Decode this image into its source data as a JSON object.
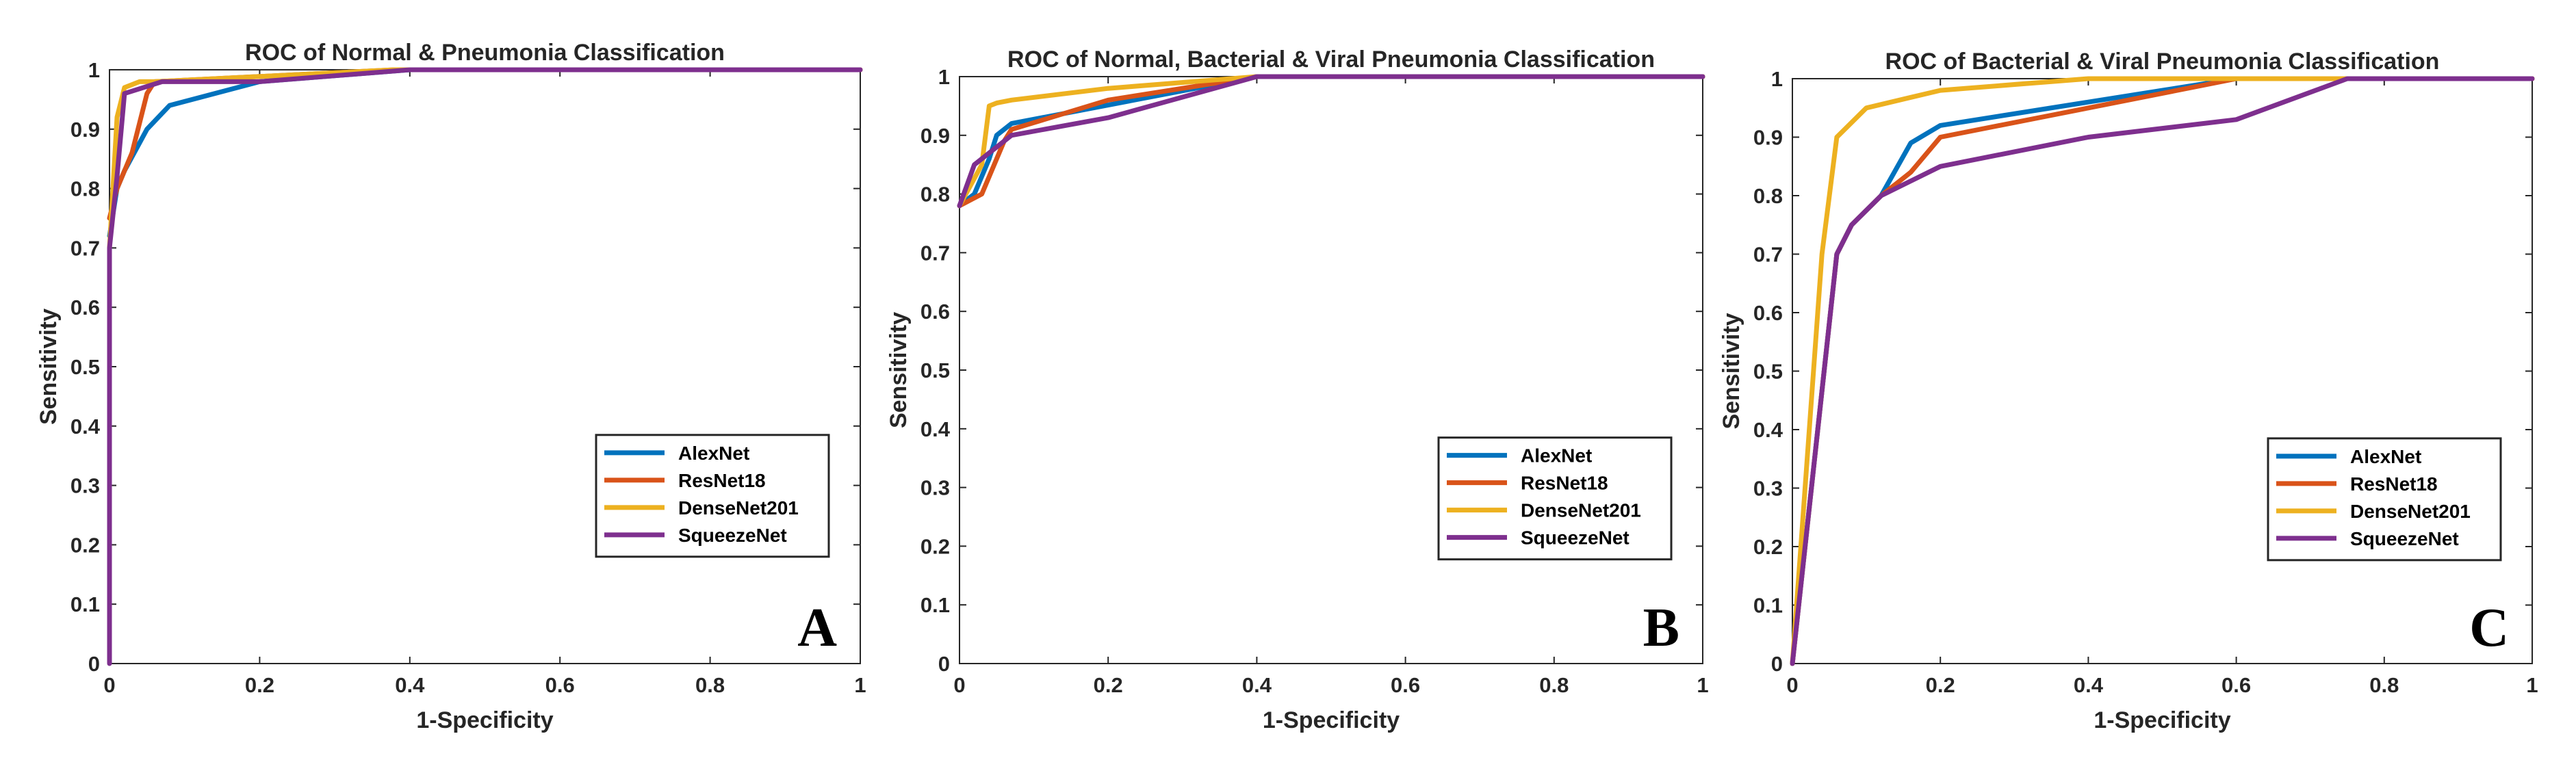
{
  "chart_data": [
    {
      "type": "line",
      "title": "ROC of Normal & Pneumonia Classification",
      "xlabel": "1-Specificity",
      "ylabel": "Sensitivity",
      "xlim": [
        0,
        1
      ],
      "ylim": [
        0,
        1
      ],
      "xticks": [
        "0",
        "0.2",
        "0.4",
        "0.6",
        "0.8",
        "1"
      ],
      "yticks": [
        "0",
        "0.1",
        "0.2",
        "0.3",
        "0.4",
        "0.5",
        "0.6",
        "0.7",
        "0.8",
        "0.9",
        "1"
      ],
      "grid": false,
      "legend_position": "bottom-right",
      "panel_label": "A",
      "series": [
        {
          "name": "AlexNet",
          "color": "#0072BD",
          "x": [
            0,
            0.01,
            0.02,
            0.05,
            0.08,
            0.2,
            0.4,
            1
          ],
          "y": [
            0.72,
            0.8,
            0.83,
            0.9,
            0.94,
            0.98,
            1,
            1
          ]
        },
        {
          "name": "ResNet18",
          "color": "#D95319",
          "x": [
            0,
            0.01,
            0.03,
            0.05,
            0.06,
            0.38,
            1
          ],
          "y": [
            0.75,
            0.8,
            0.86,
            0.96,
            0.98,
            1,
            1
          ]
        },
        {
          "name": "DenseNet201",
          "color": "#EDB120",
          "x": [
            0,
            0.01,
            0.02,
            0.04,
            0.06,
            0.38,
            1
          ],
          "y": [
            0.7,
            0.92,
            0.97,
            0.98,
            0.98,
            1,
            1
          ]
        },
        {
          "name": "SqueezeNet",
          "color": "#7E2F8E",
          "x": [
            0,
            0,
            0.01,
            0.02,
            0.07,
            0.2,
            0.4,
            1
          ],
          "y": [
            0,
            0.7,
            0.82,
            0.96,
            0.98,
            0.98,
            1,
            1
          ]
        }
      ]
    },
    {
      "type": "line",
      "title": "ROC of Normal, Bacterial & Viral Pneumonia Classification",
      "xlabel": "1-Specificity",
      "ylabel": "Sensitivity",
      "xlim": [
        0,
        1
      ],
      "ylim": [
        0,
        1
      ],
      "xticks": [
        "0",
        "0.2",
        "0.4",
        "0.6",
        "0.8",
        "1"
      ],
      "yticks": [
        "0",
        "0.1",
        "0.2",
        "0.3",
        "0.4",
        "0.5",
        "0.6",
        "0.7",
        "0.8",
        "0.9",
        "1"
      ],
      "grid": false,
      "legend_position": "bottom-right",
      "panel_label": "B",
      "series": [
        {
          "name": "AlexNet",
          "color": "#0072BD",
          "x": [
            0,
            0.02,
            0.04,
            0.05,
            0.07,
            0.4,
            1
          ],
          "y": [
            0.78,
            0.8,
            0.86,
            0.9,
            0.92,
            1,
            1
          ]
        },
        {
          "name": "ResNet18",
          "color": "#D95319",
          "x": [
            0,
            0.03,
            0.06,
            0.07,
            0.2,
            0.4,
            1
          ],
          "y": [
            0.78,
            0.8,
            0.89,
            0.91,
            0.96,
            1,
            1
          ]
        },
        {
          "name": "DenseNet201",
          "color": "#EDB120",
          "x": [
            0,
            0.03,
            0.04,
            0.05,
            0.07,
            0.2,
            0.4,
            1
          ],
          "y": [
            0.78,
            0.85,
            0.95,
            0.955,
            0.96,
            0.98,
            1,
            1
          ]
        },
        {
          "name": "SqueezeNet",
          "color": "#7E2F8E",
          "x": [
            0,
            0.02,
            0.07,
            0.2,
            0.4,
            1
          ],
          "y": [
            0.78,
            0.85,
            0.9,
            0.93,
            1,
            1
          ]
        }
      ]
    },
    {
      "type": "line",
      "title": "ROC of Bacterial & Viral Pneumonia Classification",
      "xlabel": "1-Specificity",
      "ylabel": "Sensitivity",
      "xlim": [
        0,
        1
      ],
      "ylim": [
        0,
        1
      ],
      "xticks": [
        "0",
        "0.2",
        "0.4",
        "0.6",
        "0.8",
        "1"
      ],
      "yticks": [
        "0",
        "0.1",
        "0.2",
        "0.3",
        "0.4",
        "0.5",
        "0.6",
        "0.7",
        "0.8",
        "0.9",
        "1"
      ],
      "grid": false,
      "legend_position": "bottom-right",
      "panel_label": "C",
      "series": [
        {
          "name": "AlexNet",
          "color": "#0072BD",
          "x": [
            0,
            0.06,
            0.08,
            0.12,
            0.16,
            0.2,
            0.4,
            0.6,
            1
          ],
          "y": [
            0,
            0.7,
            0.75,
            0.8,
            0.89,
            0.92,
            0.96,
            1,
            1
          ]
        },
        {
          "name": "ResNet18",
          "color": "#D95319",
          "x": [
            0,
            0.06,
            0.08,
            0.12,
            0.16,
            0.2,
            0.4,
            0.6,
            1
          ],
          "y": [
            0,
            0.7,
            0.75,
            0.8,
            0.84,
            0.9,
            0.95,
            1,
            1
          ]
        },
        {
          "name": "DenseNet201",
          "color": "#EDB120",
          "x": [
            0,
            0.04,
            0.06,
            0.1,
            0.2,
            0.4,
            1
          ],
          "y": [
            0,
            0.7,
            0.9,
            0.95,
            0.98,
            1,
            1
          ]
        },
        {
          "name": "SqueezeNet",
          "color": "#7E2F8E",
          "x": [
            0,
            0.06,
            0.08,
            0.12,
            0.2,
            0.4,
            0.6,
            0.75,
            1
          ],
          "y": [
            0,
            0.7,
            0.75,
            0.8,
            0.85,
            0.9,
            0.93,
            1,
            1
          ]
        }
      ]
    }
  ]
}
